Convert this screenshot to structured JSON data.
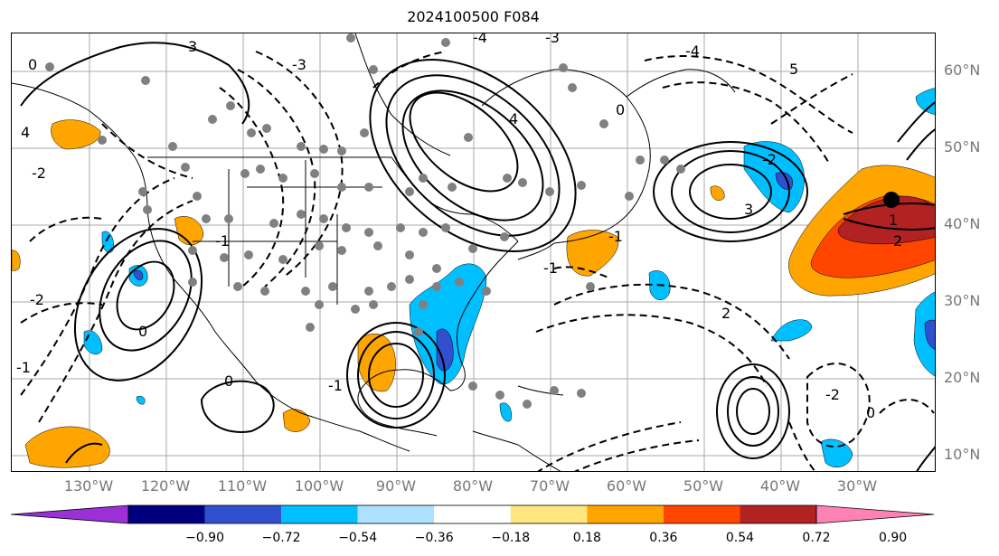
{
  "title": "2024100500 F084",
  "lat_labels": [
    "60°N",
    "50°N",
    "40°N",
    "30°N",
    "20°N",
    "10°N"
  ],
  "lon_labels": [
    "130°W",
    "120°W",
    "110°W",
    "100°W",
    "90°W",
    "80°W",
    "70°W",
    "60°W",
    "50°W",
    "40°W",
    "30°W"
  ],
  "colorbar": {
    "ticks": [
      "−0.90",
      "−0.72",
      "−0.54",
      "−0.36",
      "−0.18",
      "0.18",
      "0.36",
      "0.54",
      "0.72",
      "0.90"
    ],
    "colors": [
      "#9b30d6",
      "#00007f",
      "#3050d0",
      "#00bfff",
      "#aee0ff",
      "#ffffff",
      "#ffe680",
      "#ffa500",
      "#ff4500",
      "#b22222",
      "#ff82b4"
    ]
  },
  "contour_labels": [
    "0",
    "1",
    "2",
    "3",
    "4",
    "5",
    "-1",
    "-2",
    "-3",
    "-4"
  ]
}
